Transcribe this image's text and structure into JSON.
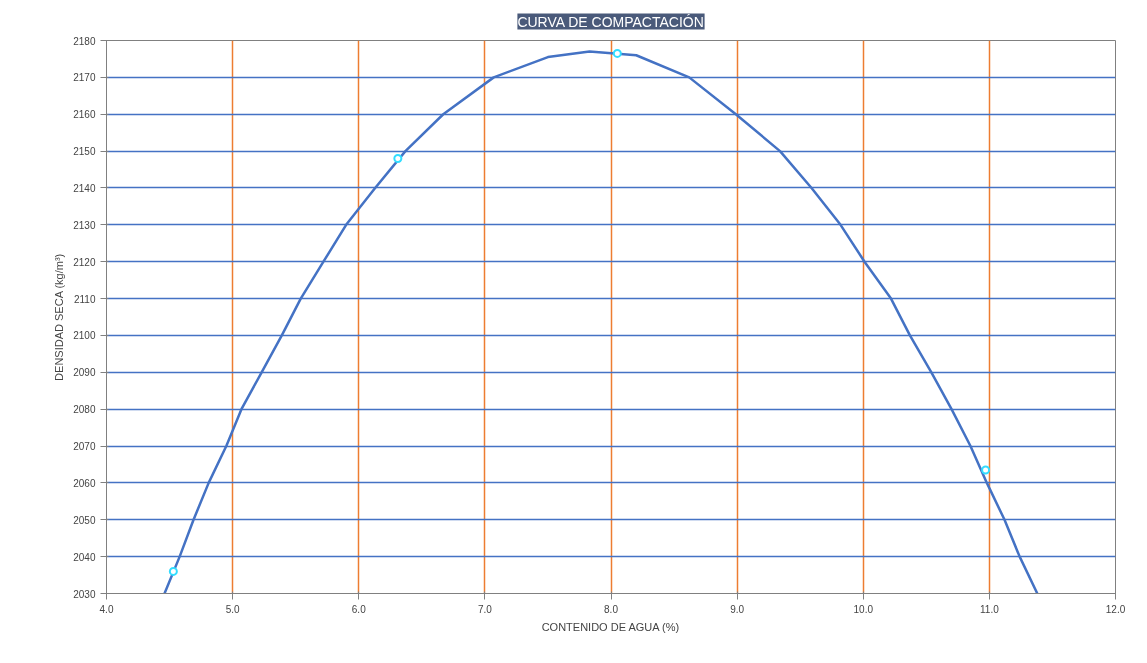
{
  "chart_data": {
    "type": "scatter",
    "title": "CURVA DE COMPACTACIÓN",
    "xlabel": "CONTENIDO DE AGUA (%)",
    "ylabel": "DENSIDAD SECA (kg/m³)",
    "xlim": [
      4,
      12
    ],
    "ylim": [
      2030,
      2180
    ],
    "xticks": [
      {
        "value": 4,
        "label": "4.0"
      },
      {
        "value": 5,
        "label": "5.0"
      },
      {
        "value": 6,
        "label": "6.0"
      },
      {
        "value": 7,
        "label": "7.0"
      },
      {
        "value": 8,
        "label": "8.0"
      },
      {
        "value": 9,
        "label": "9.0"
      },
      {
        "value": 10,
        "label": "10.0"
      },
      {
        "value": 11,
        "label": "11.0"
      },
      {
        "value": 12,
        "label": "12.0"
      }
    ],
    "yticks": [
      2030,
      2040,
      2050,
      2060,
      2070,
      2080,
      2090,
      2100,
      2110,
      2120,
      2130,
      2140,
      2150,
      2160,
      2170,
      2180
    ],
    "grid": true,
    "series": [
      {
        "type": "line",
        "marker": "none",
        "color": "#4472c4",
        "x": [
          4.46,
          4.58,
          4.69,
          4.81,
          4.95,
          5.07,
          5.23,
          5.39,
          5.54,
          5.72,
          5.9,
          6.13,
          6.37,
          6.67,
          7.07,
          7.5,
          7.83,
          8.2,
          8.62,
          8.99,
          9.34,
          9.59,
          9.82,
          10.01,
          10.22,
          10.37,
          10.54,
          10.7,
          10.85,
          10.98,
          11.12,
          11.24,
          11.38
        ],
        "values": [
          2030,
          2040,
          2050,
          2060,
          2070,
          2080,
          2090,
          2100,
          2110,
          2120,
          2130,
          2140,
          2150,
          2160,
          2170,
          2175.5,
          2177,
          2176,
          2170,
          2160,
          2150,
          2140,
          2130,
          2120,
          2110,
          2100,
          2090,
          2080,
          2070,
          2060,
          2050,
          2040,
          2030
        ]
      },
      {
        "marker": "circle",
        "color": "#33ddff",
        "x": [
          4.53,
          6.31,
          8.05,
          10.97
        ],
        "values": [
          2036,
          2148,
          2176.5,
          2063.5
        ]
      }
    ]
  }
}
